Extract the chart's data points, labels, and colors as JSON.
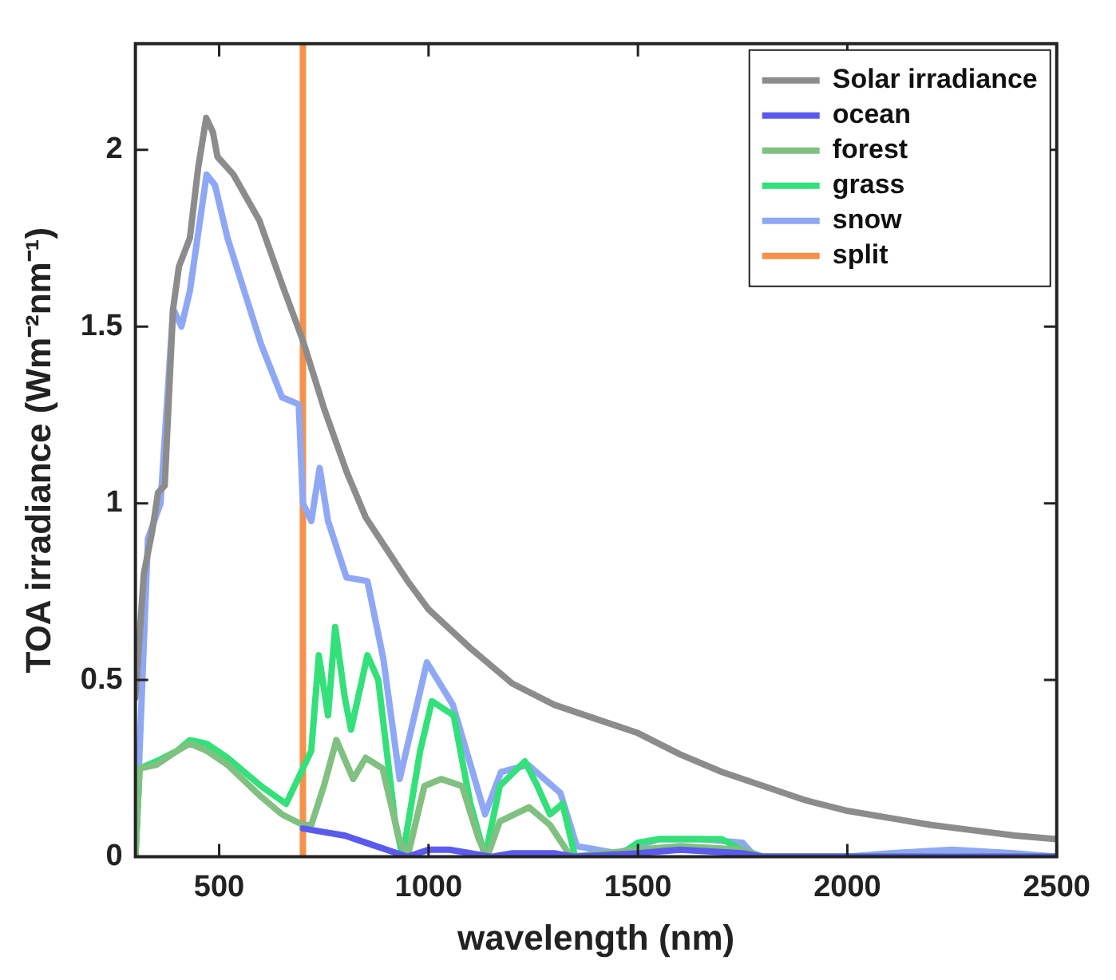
{
  "chart_data": {
    "type": "line",
    "xlabel": "wavelength (nm)",
    "ylabel": "TOA irradiance (Wm⁻²nm⁻¹)",
    "xlim": [
      300,
      2500
    ],
    "xticks": [
      500,
      1000,
      1500,
      2000,
      2500
    ],
    "ylim": [
      0,
      2.3
    ],
    "yticks": [
      0,
      0.5,
      1,
      1.5,
      2
    ],
    "grid": false,
    "legend": "top right",
    "line_style": "solid",
    "marker": "none",
    "series": [
      {
        "name": "Solar irradiance",
        "color": "#8c8c8c",
        "x": [
          300,
          320,
          340,
          354,
          370,
          390,
          404,
          430,
          450,
          469,
          485,
          496,
          534,
          596,
          650,
          700,
          750,
          804,
          850,
          900,
          950,
          1000,
          1100,
          1200,
          1300,
          1400,
          1500,
          1600,
          1700,
          1800,
          1900,
          2000,
          2100,
          2200,
          2300,
          2400,
          2500
        ],
        "values": [
          0.45,
          0.8,
          0.92,
          1.03,
          1.05,
          1.55,
          1.67,
          1.75,
          1.95,
          2.09,
          2.05,
          1.98,
          1.93,
          1.8,
          1.62,
          1.46,
          1.27,
          1.09,
          0.96,
          0.87,
          0.78,
          0.7,
          0.59,
          0.49,
          0.43,
          0.39,
          0.35,
          0.29,
          0.24,
          0.2,
          0.16,
          0.13,
          0.11,
          0.09,
          0.075,
          0.06,
          0.05
        ]
      },
      {
        "name": "ocean",
        "color": "#5a5aee",
        "x": [
          700,
          750,
          800,
          850,
          900,
          950,
          1000,
          1050,
          1100,
          1150,
          1200,
          1300,
          1350,
          1500,
          1600,
          1750,
          1800,
          2500
        ],
        "values": [
          0.08,
          0.07,
          0.06,
          0.04,
          0.02,
          0.0,
          0.02,
          0.02,
          0.01,
          0.0,
          0.01,
          0.01,
          0.0,
          0.01,
          0.02,
          0.01,
          0.0,
          0.0
        ]
      },
      {
        "name": "forest",
        "color": "#80c080",
        "x": [
          300,
          310,
          350,
          400,
          430,
          470,
          520,
          600,
          650,
          700,
          720,
          750,
          780,
          820,
          850,
          890,
          930,
          950,
          990,
          1030,
          1080,
          1120,
          1140,
          1170,
          1240,
          1290,
          1340,
          1500,
          1600,
          1750,
          1800,
          2500
        ],
        "values": [
          0.0,
          0.25,
          0.26,
          0.3,
          0.32,
          0.3,
          0.26,
          0.17,
          0.12,
          0.09,
          0.09,
          0.2,
          0.33,
          0.22,
          0.28,
          0.25,
          0.05,
          0.0,
          0.2,
          0.22,
          0.2,
          0.05,
          0.0,
          0.1,
          0.14,
          0.09,
          0.0,
          0.02,
          0.03,
          0.02,
          0.0,
          0.0
        ]
      },
      {
        "name": "grass",
        "color": "#33e07a",
        "x": [
          300,
          310,
          350,
          400,
          430,
          470,
          520,
          600,
          660,
          680,
          700,
          720,
          738,
          760,
          777,
          800,
          815,
          854,
          880,
          920,
          938,
          980,
          1008,
          1060,
          1100,
          1135,
          1170,
          1230,
          1260,
          1290,
          1320,
          1350,
          1450,
          1500,
          1550,
          1700,
          1780,
          2500
        ],
        "values": [
          0.0,
          0.25,
          0.27,
          0.3,
          0.33,
          0.32,
          0.28,
          0.2,
          0.15,
          0.2,
          0.25,
          0.3,
          0.57,
          0.4,
          0.65,
          0.45,
          0.36,
          0.57,
          0.5,
          0.1,
          0.0,
          0.3,
          0.44,
          0.4,
          0.15,
          0.0,
          0.2,
          0.27,
          0.2,
          0.12,
          0.15,
          0.0,
          0.0,
          0.04,
          0.05,
          0.05,
          0.0,
          0.0
        ]
      },
      {
        "name": "snow",
        "color": "#8fa8f5",
        "x": [
          300,
          330,
          360,
          390,
          410,
          430,
          470,
          490,
          520,
          560,
          600,
          650,
          690,
          700,
          720,
          740,
          760,
          804,
          854,
          892,
          931,
          996,
          1058,
          1135,
          1173,
          1238,
          1315,
          1354,
          1450,
          1500,
          1550,
          1650,
          1750,
          1780,
          2000,
          2100,
          2250,
          2400,
          2500
        ],
        "values": [
          0.0,
          0.9,
          1.0,
          1.55,
          1.5,
          1.6,
          1.93,
          1.9,
          1.75,
          1.6,
          1.45,
          1.3,
          1.28,
          1.0,
          0.95,
          1.1,
          0.95,
          0.79,
          0.78,
          0.56,
          0.22,
          0.55,
          0.43,
          0.12,
          0.24,
          0.26,
          0.18,
          0.03,
          0.01,
          0.03,
          0.05,
          0.05,
          0.04,
          0.0,
          0.0,
          0.01,
          0.02,
          0.01,
          0.0
        ]
      },
      {
        "name": "split",
        "color": "#f5914a",
        "x": [
          700,
          700
        ],
        "values": [
          0,
          2.3
        ]
      }
    ]
  }
}
